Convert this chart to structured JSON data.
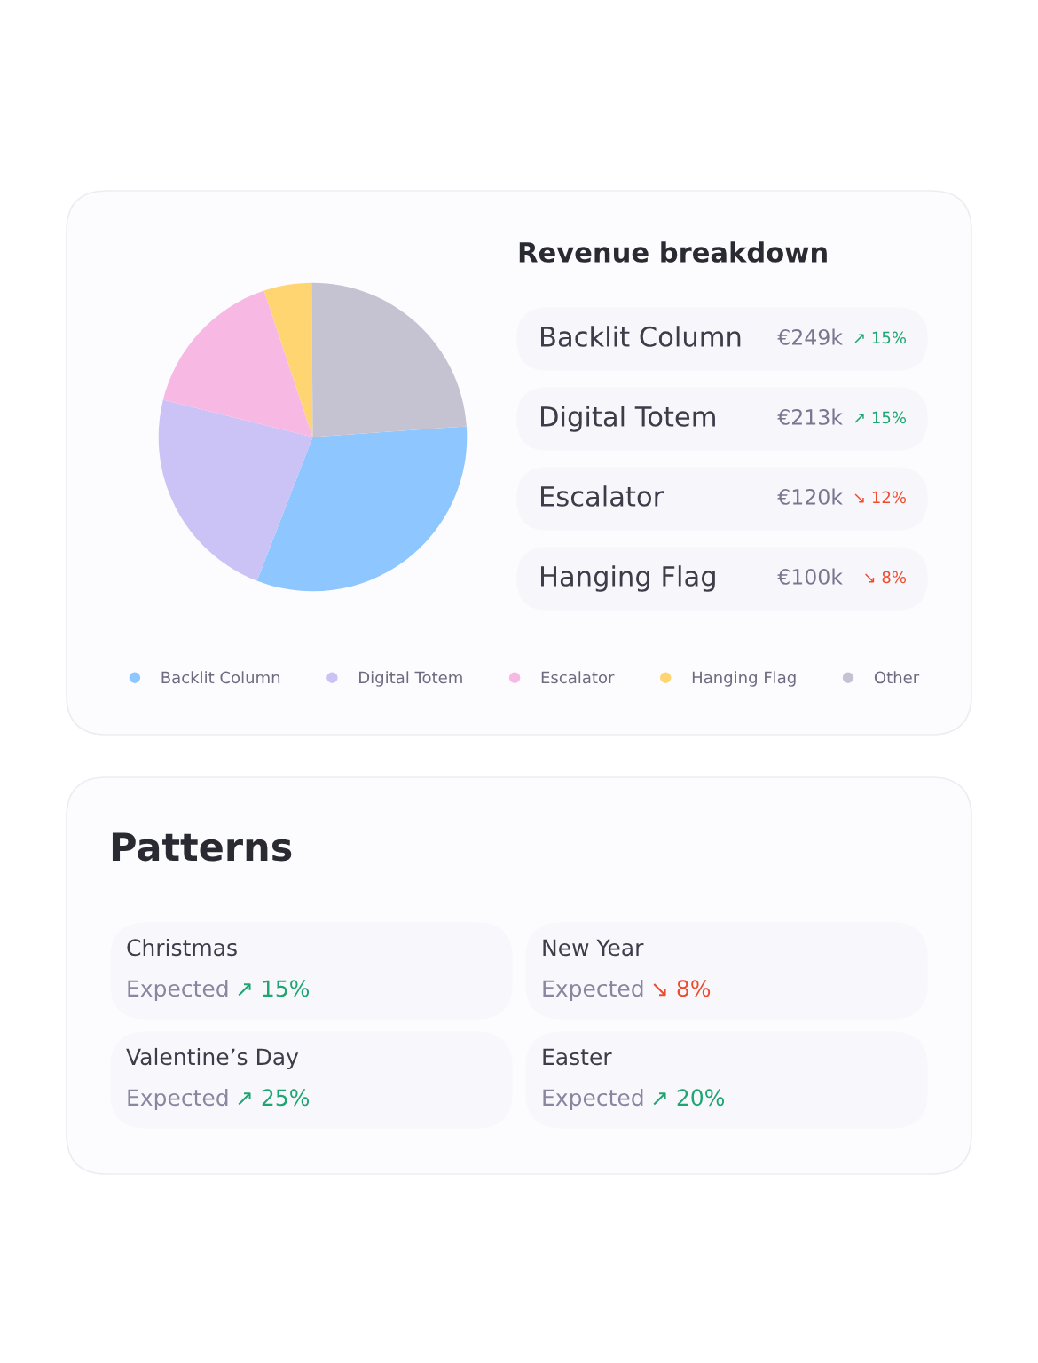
{
  "chart_data": [
    {
      "type": "pie",
      "categories": [
        "Backlit Column",
        "Digital Totem",
        "Escalator",
        "Hanging Flag",
        "Other"
      ],
      "values": [
        32,
        23,
        16,
        5,
        24
      ],
      "colors": [
        "#8ec6ff",
        "#cbc2f6",
        "#f7b8e4",
        "#ffd572",
        "#c5c3d2"
      ],
      "legend": "bottom"
    },
    {
      "type": "other",
      "title": "Revenue breakdown",
      "categories": [
        "Backlit Column",
        "Digital Totem",
        "Escalator",
        "Hanging Flag"
      ],
      "value_labels": [
        "€249k",
        "€213k",
        "€120k",
        "€100k"
      ],
      "annotations": [
        "↗ 15%",
        "↗ 15%",
        "↘ 12%",
        "↘ 8%"
      ],
      "colors": [
        "#1fa571",
        "#1fa571",
        "#ef4b2c",
        "#ef4b2c"
      ]
    },
    {
      "type": "other",
      "title": "Patterns",
      "categories": [
        "Christmas",
        "New Year",
        "Valentine’s Day",
        "Easter"
      ],
      "annotations": [
        "Expected",
        "Expected",
        "Expected",
        "Expected"
      ],
      "value_labels": [
        "↗ 15%",
        "↘ 8%",
        "↗ 25%",
        "↗ 20%"
      ],
      "colors": [
        "#1fa571",
        "#ef4b2c",
        "#1fa571",
        "#1fa571"
      ]
    }
  ]
}
